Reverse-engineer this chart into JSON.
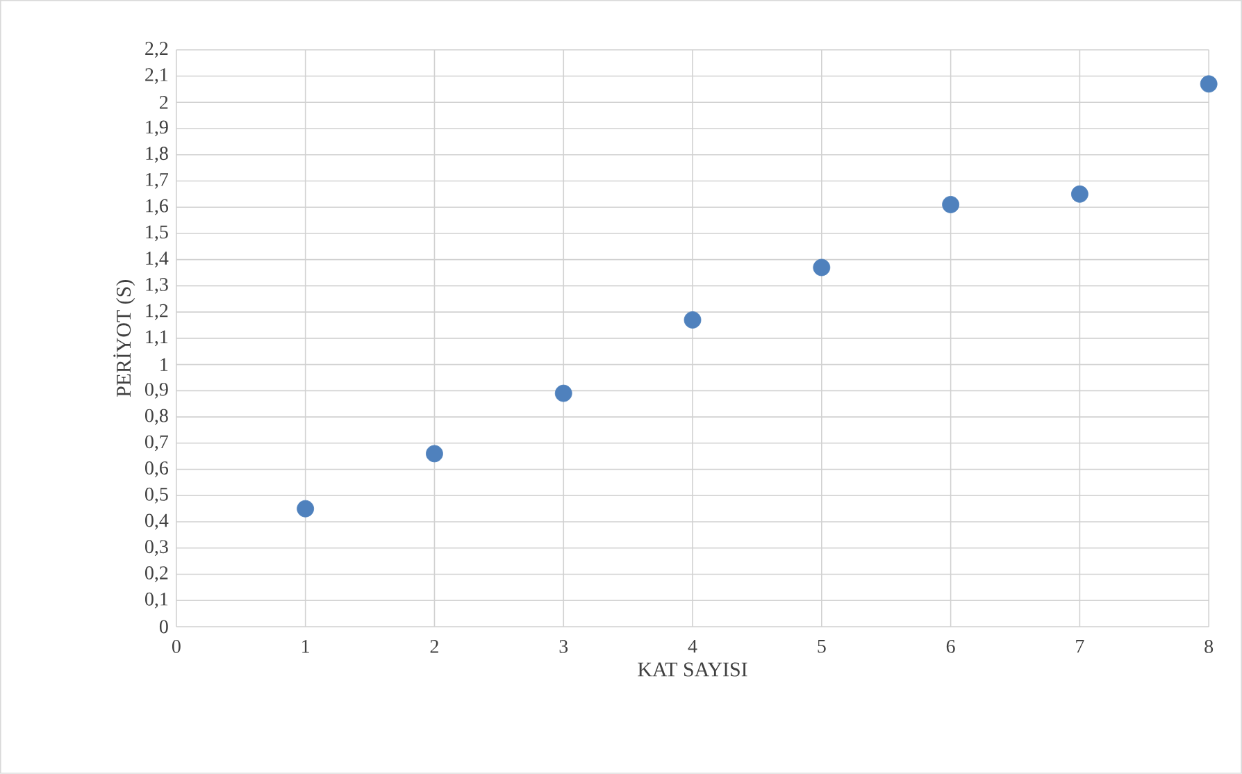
{
  "chart_data": {
    "type": "scatter",
    "xlabel": "KAT SAYISI",
    "ylabel": "PERİYOT (S)",
    "x": [
      1,
      2,
      3,
      4,
      5,
      6,
      7,
      8
    ],
    "values": [
      0.45,
      0.66,
      0.89,
      1.17,
      1.37,
      1.61,
      1.65,
      2.07
    ],
    "color": "#4f81bd",
    "marker": "circle",
    "grid": true,
    "xlim": [
      0,
      8
    ],
    "xticks": [
      0,
      1,
      2,
      3,
      4,
      5,
      6,
      7,
      8
    ],
    "ylim": [
      0,
      2.2
    ],
    "yticks": [
      0,
      {
        "value": 0.1,
        "label": "0,1"
      },
      {
        "value": 0.2,
        "label": "0,2"
      },
      {
        "value": 0.3,
        "label": "0,3"
      },
      {
        "value": 0.4,
        "label": "0,4"
      },
      {
        "value": 0.5,
        "label": "0,5"
      },
      {
        "value": 0.6,
        "label": "0,6"
      },
      {
        "value": 0.7,
        "label": "0,7"
      },
      {
        "value": 0.8,
        "label": "0,8"
      },
      {
        "value": 0.9,
        "label": "0,9"
      },
      1,
      {
        "value": 1.1,
        "label": "1,1"
      },
      {
        "value": 1.2,
        "label": "1,2"
      },
      {
        "value": 1.3,
        "label": "1,3"
      },
      {
        "value": 1.4,
        "label": "1,4"
      },
      {
        "value": 1.5,
        "label": "1,5"
      },
      {
        "value": 1.6,
        "label": "1,6"
      },
      {
        "value": 1.7,
        "label": "1,7"
      },
      {
        "value": 1.8,
        "label": "1,8"
      },
      {
        "value": 1.9,
        "label": "1,9"
      },
      2,
      {
        "value": 2.1,
        "label": "2,1"
      },
      {
        "value": 2.2,
        "label": "2,2"
      }
    ]
  }
}
